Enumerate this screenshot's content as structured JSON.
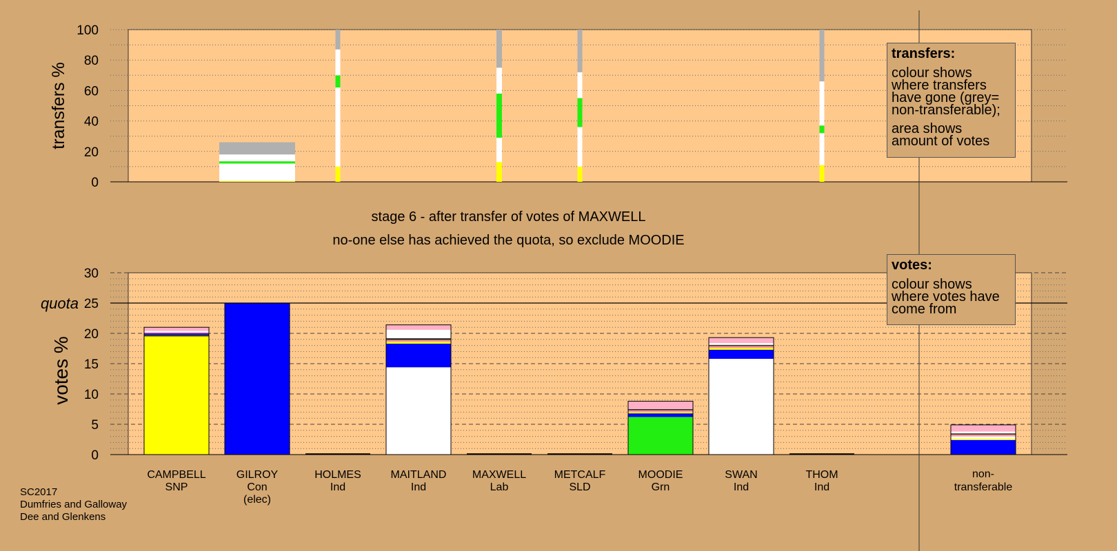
{
  "chart_data": [
    {
      "type": "bar",
      "stacked": true,
      "ylabel": "transfers %",
      "ylim": [
        0,
        100
      ],
      "yticks": [
        0,
        20,
        40,
        60,
        80,
        100
      ],
      "grid": "dotted",
      "bars": [
        {
          "candidate": "GILROY",
          "from_pct": 0,
          "to_pct": 26,
          "width_votes": 25,
          "segments": [
            {
              "party": "SNP",
              "color": "#ffff00",
              "from": 0,
              "to": 0.5
            },
            {
              "party": "Ind",
              "color": "#ffffff",
              "from": 0.5,
              "to": 12
            },
            {
              "party": "Grn",
              "color": "#22ee11",
              "from": 12,
              "to": 13.5
            },
            {
              "party": "Ind",
              "color": "#ffffff",
              "from": 13.5,
              "to": 18
            },
            {
              "party": "non-transferable",
              "color": "#b0b0b0",
              "from": 18,
              "to": 26
            }
          ]
        },
        {
          "candidate": "HOLMES",
          "from_pct": 0,
          "to_pct": 100,
          "width_votes": 0.8,
          "segments": [
            {
              "party": "SNP",
              "color": "#ffff00",
              "from": 0,
              "to": 10
            },
            {
              "party": "Ind",
              "color": "#ffffff",
              "from": 10,
              "to": 62
            },
            {
              "party": "Grn",
              "color": "#22ee11",
              "from": 62,
              "to": 70
            },
            {
              "party": "Ind",
              "color": "#ffffff",
              "from": 70,
              "to": 87
            },
            {
              "party": "non-transferable",
              "color": "#b0b0b0",
              "from": 87,
              "to": 100
            }
          ]
        },
        {
          "candidate": "MAXWELL",
          "from_pct": 0,
          "to_pct": 100,
          "width_votes": 1.8,
          "segments": [
            {
              "party": "SNP",
              "color": "#ffff00",
              "from": 0,
              "to": 13
            },
            {
              "party": "Ind",
              "color": "#ffffff",
              "from": 13,
              "to": 29
            },
            {
              "party": "Grn",
              "color": "#22ee11",
              "from": 29,
              "to": 58
            },
            {
              "party": "Ind",
              "color": "#ffffff",
              "from": 58,
              "to": 75
            },
            {
              "party": "non-transferable",
              "color": "#b0b0b0",
              "from": 75,
              "to": 100
            }
          ]
        },
        {
          "candidate": "METCALF",
          "from_pct": 0,
          "to_pct": 100,
          "width_votes": 0.7,
          "segments": [
            {
              "party": "SNP",
              "color": "#ffff00",
              "from": 0,
              "to": 10
            },
            {
              "party": "Ind",
              "color": "#ffffff",
              "from": 10,
              "to": 36
            },
            {
              "party": "Grn",
              "color": "#22ee11",
              "from": 36,
              "to": 55
            },
            {
              "party": "Ind",
              "color": "#ffffff",
              "from": 55,
              "to": 72
            },
            {
              "party": "non-transferable",
              "color": "#b0b0b0",
              "from": 72,
              "to": 100
            }
          ]
        },
        {
          "candidate": "THOM",
          "from_pct": 0,
          "to_pct": 100,
          "width_votes": 0.5,
          "segments": [
            {
              "party": "SNP",
              "color": "#ffff00",
              "from": 0,
              "to": 11
            },
            {
              "party": "Ind",
              "color": "#ffffff",
              "from": 11,
              "to": 32
            },
            {
              "party": "Grn",
              "color": "#22ee11",
              "from": 32,
              "to": 37
            },
            {
              "party": "Ind",
              "color": "#ffffff",
              "from": 37,
              "to": 66
            },
            {
              "party": "non-transferable",
              "color": "#b0b0b0",
              "from": 66,
              "to": 100
            }
          ]
        }
      ]
    },
    {
      "type": "bar",
      "stacked": true,
      "ylabel": "votes %",
      "ylim": [
        0,
        30
      ],
      "yticks": [
        0,
        5,
        10,
        15,
        20,
        25,
        30
      ],
      "quota": 25,
      "quota_label": "quota",
      "grid": "dashed",
      "categories": [
        {
          "name": "CAMPBELL",
          "party": "SNP",
          "note": ""
        },
        {
          "name": "GILROY",
          "party": "Con",
          "note": "(elec)"
        },
        {
          "name": "HOLMES",
          "party": "Ind",
          "note": ""
        },
        {
          "name": "MAITLAND",
          "party": "Ind",
          "note": ""
        },
        {
          "name": "MAXWELL",
          "party": "Lab",
          "note": ""
        },
        {
          "name": "METCALF",
          "party": "SLD",
          "note": ""
        },
        {
          "name": "MOODIE",
          "party": "Grn",
          "note": ""
        },
        {
          "name": "SWAN",
          "party": "Ind",
          "note": ""
        },
        {
          "name": "THOM",
          "party": "Ind",
          "note": ""
        }
      ],
      "nontransferable_label": [
        "non-",
        "transferable"
      ],
      "bars": [
        {
          "candidate": "CAMPBELL",
          "segments": [
            {
              "color": "#ffff00",
              "from": 0,
              "to": 19.5
            },
            {
              "color": "#333333",
              "from": 19.5,
              "to": 19.8
            },
            {
              "color": "#0000ff",
              "from": 19.8,
              "to": 20.0
            },
            {
              "color": "#ff9999",
              "from": 20.0,
              "to": 20.2
            },
            {
              "color": "#ffffff",
              "from": 20.2,
              "to": 20.4
            },
            {
              "color": "#ffb0c8",
              "from": 20.4,
              "to": 21.0
            }
          ]
        },
        {
          "candidate": "GILROY",
          "segments": [
            {
              "color": "#0000ff",
              "from": 0,
              "to": 25
            }
          ]
        },
        {
          "candidate": "HOLMES",
          "segments": []
        },
        {
          "candidate": "MAITLAND",
          "segments": [
            {
              "color": "#ffffff",
              "from": 0,
              "to": 14.4
            },
            {
              "color": "#0000ff",
              "from": 14.4,
              "to": 18.3
            },
            {
              "color": "#ffff00",
              "from": 18.3,
              "to": 18.6
            },
            {
              "color": "#ff9999",
              "from": 18.6,
              "to": 18.9
            },
            {
              "color": "#333333",
              "from": 18.9,
              "to": 19.2
            },
            {
              "color": "#ffffff",
              "from": 19.2,
              "to": 20.6
            },
            {
              "color": "#ffb0c8",
              "from": 20.6,
              "to": 21.4
            }
          ]
        },
        {
          "candidate": "MAXWELL",
          "segments": []
        },
        {
          "candidate": "METCALF",
          "segments": []
        },
        {
          "candidate": "MOODIE",
          "segments": [
            {
              "color": "#22ee11",
              "from": 0,
              "to": 6.2
            },
            {
              "color": "#0000ff",
              "from": 6.2,
              "to": 6.8
            },
            {
              "color": "#ffff00",
              "from": 6.8,
              "to": 7.0
            },
            {
              "color": "#ff9999",
              "from": 7.0,
              "to": 7.3
            },
            {
              "color": "#333333",
              "from": 7.3,
              "to": 7.5
            },
            {
              "color": "#ffb0c8",
              "from": 7.5,
              "to": 8.8
            }
          ]
        },
        {
          "candidate": "SWAN",
          "segments": [
            {
              "color": "#ffffff",
              "from": 0,
              "to": 15.8
            },
            {
              "color": "#0000ff",
              "from": 15.8,
              "to": 17.3
            },
            {
              "color": "#ffff00",
              "from": 17.3,
              "to": 17.6
            },
            {
              "color": "#ff9999",
              "from": 17.6,
              "to": 17.9
            },
            {
              "color": "#333333",
              "from": 17.9,
              "to": 18.1
            },
            {
              "color": "#ffffff",
              "from": 18.1,
              "to": 18.4
            },
            {
              "color": "#ffb0c8",
              "from": 18.4,
              "to": 19.3
            }
          ]
        },
        {
          "candidate": "THOM",
          "segments": []
        },
        {
          "candidate": "non-transferable",
          "segments": [
            {
              "color": "#0000ff",
              "from": 0,
              "to": 2.4
            },
            {
              "color": "#ffff00",
              "from": 2.4,
              "to": 2.6
            },
            {
              "color": "#ffffff",
              "from": 2.6,
              "to": 3.0
            },
            {
              "color": "#ff9999",
              "from": 3.0,
              "to": 3.3
            },
            {
              "color": "#333333",
              "from": 3.3,
              "to": 3.5
            },
            {
              "color": "#ffffff",
              "from": 3.5,
              "to": 3.8
            },
            {
              "color": "#ffb0c8",
              "from": 3.8,
              "to": 4.9
            }
          ]
        }
      ]
    }
  ],
  "stage_text": {
    "line1": "stage 6 - after transfer of votes of MAXWELL",
    "line2": "no-one else has achieved the quota, so exclude MOODIE"
  },
  "legend_transfers": {
    "title": "transfers:",
    "p1": "colour shows where transfers have gone (grey= non-transferable);",
    "p2": "area shows amount of votes"
  },
  "legend_votes": {
    "title": "votes:",
    "p1": "colour shows where votes have come from"
  },
  "footnote": {
    "line1": "SC2017",
    "line2": "Dumfries and Galloway",
    "line3": "Dee and Glenkens"
  },
  "colors": {
    "background": "#d4a873",
    "plot_area": "#ffc98c",
    "SNP": "#ffff00",
    "Con": "#0000ff",
    "Ind": "#ffffff",
    "Grn": "#22ee11",
    "non_transferable": "#b0b0b0"
  }
}
